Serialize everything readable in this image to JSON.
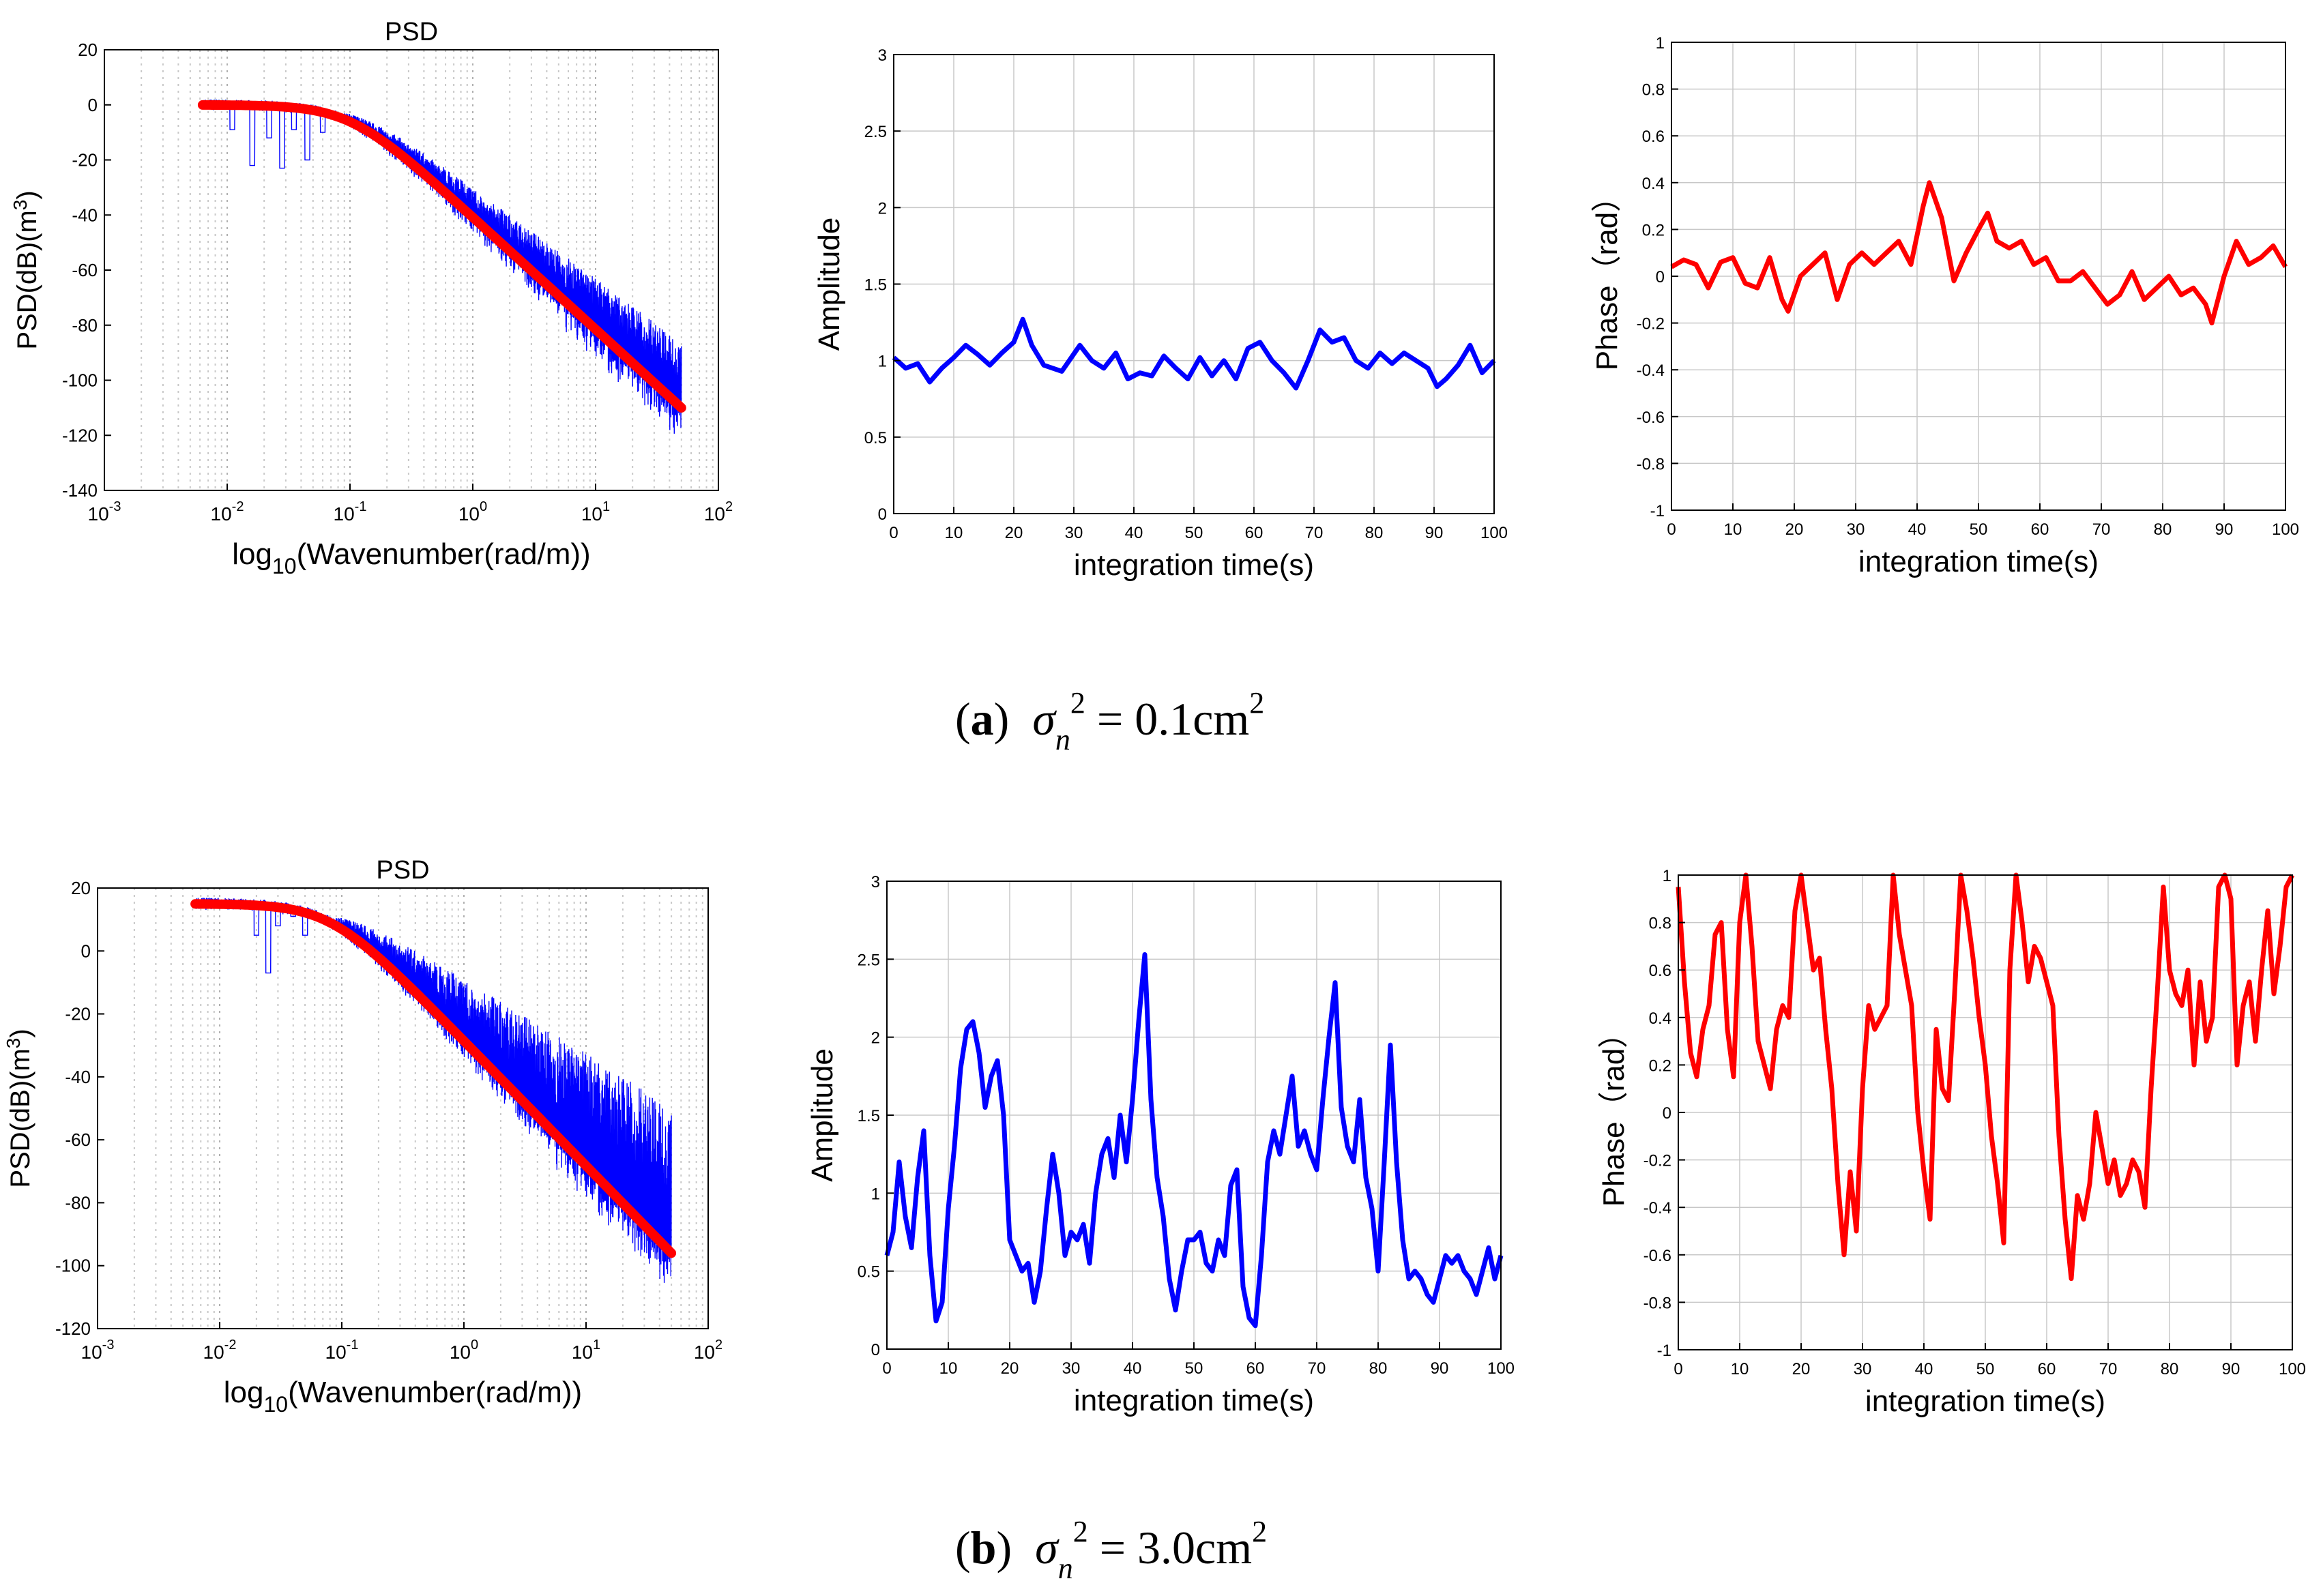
{
  "figure": {
    "captions": [
      {
        "label_open": "(",
        "label": "a",
        "label_close": ")",
        "symbol": "σ",
        "subscript": "n",
        "superscript": "2",
        "equals": " = ",
        "value": "0.1cm",
        "unit_superscript": "2"
      },
      {
        "label_open": "(",
        "label": "b",
        "label_close": ")",
        "symbol": "σ",
        "subscript": "n",
        "superscript": "2",
        "equals": " = ",
        "value": "3.0cm",
        "unit_superscript": "2"
      }
    ]
  },
  "colors": {
    "measured": "#0000ff",
    "fit": "#ff0000",
    "phase": "#ff0000",
    "amplitude": "#0000ff",
    "grid": "#c8c8c8",
    "axis": "#000000"
  },
  "chart_data": [
    {
      "id": "psd_a",
      "type": "line",
      "title": "PSD",
      "xscale": "log",
      "xlim": [
        0.001,
        100
      ],
      "xticks": [
        {
          "base": "10",
          "exp": "-3"
        },
        {
          "base": "10",
          "exp": "-2"
        },
        {
          "base": "10",
          "exp": "-1"
        },
        {
          "base": "10",
          "exp": "0"
        },
        {
          "base": "10",
          "exp": "1"
        },
        {
          "base": "10",
          "exp": "2"
        }
      ],
      "ylim": [
        -140,
        20
      ],
      "yticks": [
        "20",
        "0",
        "-20",
        "-40",
        "-60",
        "-80",
        "-100",
        "-120",
        "-140"
      ],
      "xlabel": {
        "prefix": "log",
        "sub": "10",
        "rest": "(Wavenumber(rad/m))"
      },
      "ylabel": {
        "text": "PSD(dB)(m",
        "sup": "3",
        "end": ")"
      },
      "fit": {
        "k0": 0.0063,
        "k1": 50,
        "plateau_db": 0,
        "kc": 0.1,
        "slope": 2.9,
        "end_db": -110
      },
      "noise_extra_db": 22,
      "dips": [
        [
          0.011,
          -9
        ],
        [
          0.016,
          -22
        ],
        [
          0.022,
          -12
        ],
        [
          0.028,
          -23
        ],
        [
          0.035,
          -9
        ],
        [
          0.045,
          -20
        ],
        [
          0.06,
          -10
        ]
      ]
    },
    {
      "id": "amp_a",
      "type": "line",
      "xlabel": "integration time(s)",
      "ylabel": "Amplitude",
      "xlim": [
        0,
        100
      ],
      "ylim": [
        0,
        3
      ],
      "xticks": [
        "0",
        "10",
        "20",
        "30",
        "40",
        "50",
        "60",
        "70",
        "80",
        "90",
        "100"
      ],
      "yticks": [
        "3",
        "2.5",
        "2",
        "1.5",
        "1",
        "0.5",
        "0"
      ],
      "series": [
        {
          "name": "Amplitude",
          "x": [
            0,
            2,
            4,
            6,
            8,
            10,
            12,
            14,
            16,
            18,
            20,
            21.5,
            23,
            25,
            28,
            31,
            33,
            35,
            37,
            39,
            41,
            43,
            45,
            47,
            49,
            51,
            53,
            55,
            57,
            59,
            61,
            63,
            65,
            67,
            69,
            71,
            73,
            75,
            77,
            79,
            81,
            83,
            85,
            87,
            89,
            90.5,
            92,
            94,
            96,
            98,
            100
          ],
          "y": [
            1.02,
            0.95,
            0.98,
            0.86,
            0.95,
            1.02,
            1.1,
            1.04,
            0.97,
            1.05,
            1.12,
            1.27,
            1.1,
            0.97,
            0.93,
            1.1,
            1.0,
            0.95,
            1.05,
            0.88,
            0.92,
            0.9,
            1.03,
            0.95,
            0.88,
            1.02,
            0.9,
            1.0,
            0.88,
            1.08,
            1.12,
            1.0,
            0.92,
            0.82,
            1.0,
            1.2,
            1.12,
            1.15,
            1.0,
            0.95,
            1.05,
            0.98,
            1.05,
            1.0,
            0.95,
            0.83,
            0.88,
            0.97,
            1.1,
            0.92,
            1.0
          ]
        }
      ]
    },
    {
      "id": "phase_a",
      "type": "line",
      "xlabel": "integration time(s)",
      "ylabel": "Phase（rad）",
      "xlim": [
        0,
        100
      ],
      "ylim": [
        -1,
        1
      ],
      "xticks": [
        "0",
        "10",
        "20",
        "30",
        "40",
        "50",
        "60",
        "70",
        "80",
        "90",
        "100"
      ],
      "yticks": [
        "1",
        "0.8",
        "0.6",
        "0.4",
        "0.2",
        "0",
        "-0.2",
        "-0.4",
        "-0.6",
        "-0.8",
        "-1"
      ],
      "series": [
        {
          "name": "Phase",
          "x": [
            0,
            2,
            4,
            6,
            8,
            10,
            12,
            14,
            16,
            18,
            19,
            21,
            23,
            25,
            27,
            29,
            31,
            33,
            35,
            37,
            39,
            41,
            42,
            44,
            46,
            48,
            50,
            51.5,
            53,
            55,
            57,
            59,
            61,
            63,
            65,
            67,
            69,
            71,
            73,
            75,
            77,
            79,
            81,
            83,
            85,
            87,
            88,
            90,
            92,
            94,
            96,
            98,
            100
          ],
          "y": [
            0.04,
            0.07,
            0.05,
            -0.05,
            0.06,
            0.08,
            -0.03,
            -0.05,
            0.08,
            -0.1,
            -0.15,
            0.0,
            0.05,
            0.1,
            -0.1,
            0.05,
            0.1,
            0.05,
            0.1,
            0.15,
            0.05,
            0.3,
            0.4,
            0.25,
            -0.02,
            0.1,
            0.2,
            0.27,
            0.15,
            0.12,
            0.15,
            0.05,
            0.08,
            -0.02,
            -0.02,
            0.02,
            -0.05,
            -0.12,
            -0.08,
            0.02,
            -0.1,
            -0.05,
            0.0,
            -0.08,
            -0.05,
            -0.12,
            -0.2,
            0.0,
            0.15,
            0.05,
            0.08,
            0.13,
            0.04
          ]
        }
      ]
    },
    {
      "id": "psd_b",
      "type": "line",
      "title": "PSD",
      "xscale": "log",
      "xlim": [
        0.001,
        100
      ],
      "xticks": [
        {
          "base": "10",
          "exp": "-3"
        },
        {
          "base": "10",
          "exp": "-2"
        },
        {
          "base": "10",
          "exp": "-1"
        },
        {
          "base": "10",
          "exp": "0"
        },
        {
          "base": "10",
          "exp": "1"
        },
        {
          "base": "10",
          "exp": "2"
        }
      ],
      "ylim": [
        -120,
        20
      ],
      "yticks": [
        "20",
        "0",
        "-20",
        "-40",
        "-60",
        "-80",
        "-100",
        "-120"
      ],
      "xlabel": {
        "prefix": "log",
        "sub": "10",
        "rest": "(Wavenumber(rad/m))"
      },
      "ylabel": {
        "text": "PSD(dB)(m",
        "sup": "3",
        "end": ")"
      },
      "fit": {
        "k0": 0.0063,
        "k1": 50,
        "plateau_db": 15,
        "kc": 0.08,
        "slope": 2.9,
        "end_db": -96
      },
      "noise_extra_db": 45,
      "dips": [
        [
          0.02,
          5
        ],
        [
          0.025,
          -7
        ],
        [
          0.03,
          8
        ],
        [
          0.04,
          11
        ],
        [
          0.05,
          5
        ]
      ]
    },
    {
      "id": "amp_b",
      "type": "line",
      "xlabel": "integration time(s)",
      "ylabel": "Amplitude",
      "xlim": [
        0,
        100
      ],
      "ylim": [
        0,
        3
      ],
      "xticks": [
        "0",
        "10",
        "20",
        "30",
        "40",
        "50",
        "60",
        "70",
        "80",
        "90",
        "100"
      ],
      "yticks": [
        "3",
        "2.5",
        "2",
        "1.5",
        "1",
        "0.5",
        "0"
      ],
      "series": [
        {
          "name": "Amplitude",
          "x": [
            0,
            1,
            2,
            3,
            4,
            5,
            6,
            7,
            8,
            9,
            10,
            11,
            12,
            13,
            14,
            15,
            16,
            17,
            18,
            19,
            20,
            21,
            22,
            23,
            24,
            25,
            26,
            27,
            28,
            29,
            30,
            31,
            32,
            33,
            34,
            35,
            36,
            37,
            38,
            39,
            40,
            41,
            42,
            43,
            44,
            45,
            46,
            47,
            48,
            49,
            50,
            51,
            52,
            53,
            54,
            55,
            56,
            57,
            58,
            59,
            60,
            61,
            62,
            63,
            64,
            65,
            66,
            67,
            68,
            69,
            70,
            71,
            72,
            73,
            74,
            75,
            76,
            77,
            78,
            79,
            80,
            81,
            82,
            83,
            84,
            85,
            86,
            87,
            88,
            89,
            90,
            91,
            92,
            93,
            94,
            95,
            96,
            97,
            98,
            99,
            100
          ],
          "y": [
            0.6,
            0.75,
            1.2,
            0.85,
            0.65,
            1.1,
            1.4,
            0.6,
            0.18,
            0.3,
            0.9,
            1.3,
            1.8,
            2.05,
            2.1,
            1.9,
            1.55,
            1.75,
            1.85,
            1.5,
            0.7,
            0.6,
            0.5,
            0.55,
            0.3,
            0.5,
            0.9,
            1.25,
            1.0,
            0.6,
            0.75,
            0.7,
            0.8,
            0.55,
            1.0,
            1.25,
            1.35,
            1.1,
            1.5,
            1.2,
            1.6,
            2.1,
            2.53,
            1.6,
            1.1,
            0.85,
            0.45,
            0.25,
            0.5,
            0.7,
            0.7,
            0.75,
            0.55,
            0.5,
            0.7,
            0.6,
            1.05,
            1.15,
            0.4,
            0.2,
            0.15,
            0.6,
            1.2,
            1.4,
            1.25,
            1.5,
            1.75,
            1.3,
            1.4,
            1.25,
            1.15,
            1.6,
            2.0,
            2.35,
            1.55,
            1.3,
            1.2,
            1.6,
            1.1,
            0.9,
            0.5,
            1.2,
            1.95,
            1.2,
            0.7,
            0.45,
            0.5,
            0.45,
            0.35,
            0.3,
            0.45,
            0.6,
            0.55,
            0.6,
            0.5,
            0.45,
            0.35,
            0.5,
            0.65,
            0.45,
            0.6
          ]
        }
      ]
    },
    {
      "id": "phase_b",
      "type": "line",
      "xlabel": "integration time(s)",
      "ylabel": "Phase（rad）",
      "xlim": [
        0,
        100
      ],
      "ylim": [
        -1,
        1
      ],
      "xticks": [
        "0",
        "10",
        "20",
        "30",
        "40",
        "50",
        "60",
        "70",
        "80",
        "90",
        "100"
      ],
      "yticks": [
        "1",
        "0.8",
        "0.6",
        "0.4",
        "0.2",
        "0",
        "-0.2",
        "-0.4",
        "-0.6",
        "-0.8",
        "-1"
      ],
      "series": [
        {
          "name": "Phase",
          "x": [
            0,
            1,
            2,
            3,
            4,
            5,
            6,
            7,
            8,
            9,
            10,
            11,
            12,
            13,
            14,
            15,
            16,
            17,
            18,
            19,
            20,
            21,
            22,
            23,
            24,
            25,
            26,
            27,
            28,
            29,
            30,
            31,
            32,
            33,
            34,
            35,
            36,
            37,
            38,
            39,
            40,
            41,
            42,
            43,
            44,
            45,
            46,
            47,
            48,
            49,
            50,
            51,
            52,
            53,
            54,
            55,
            56,
            57,
            58,
            59,
            60,
            61,
            62,
            63,
            64,
            65,
            66,
            67,
            68,
            69,
            70,
            71,
            72,
            73,
            74,
            75,
            76,
            77,
            78,
            79,
            80,
            81,
            82,
            83,
            84,
            85,
            86,
            87,
            88,
            89,
            90,
            91,
            92,
            93,
            94,
            95,
            96,
            97,
            98,
            99,
            100
          ],
          "y": [
            0.95,
            0.55,
            0.25,
            0.15,
            0.35,
            0.45,
            0.75,
            0.8,
            0.35,
            0.15,
            0.8,
            1.0,
            0.7,
            0.3,
            0.2,
            0.1,
            0.35,
            0.45,
            0.4,
            0.85,
            1.0,
            0.8,
            0.6,
            0.65,
            0.35,
            0.1,
            -0.3,
            -0.6,
            -0.25,
            -0.5,
            0.1,
            0.45,
            0.35,
            0.4,
            0.45,
            1.0,
            0.75,
            0.6,
            0.45,
            0.0,
            -0.25,
            -0.45,
            0.35,
            0.1,
            0.05,
            0.5,
            1.0,
            0.85,
            0.65,
            0.4,
            0.2,
            -0.1,
            -0.3,
            -0.55,
            0.6,
            1.0,
            0.8,
            0.55,
            0.7,
            0.65,
            0.55,
            0.45,
            -0.1,
            -0.45,
            -0.7,
            -0.35,
            -0.45,
            -0.3,
            0.0,
            -0.15,
            -0.3,
            -0.2,
            -0.35,
            -0.3,
            -0.2,
            -0.25,
            -0.4,
            0.1,
            0.5,
            0.95,
            0.6,
            0.5,
            0.45,
            0.6,
            0.2,
            0.55,
            0.3,
            0.4,
            0.95,
            1.0,
            0.9,
            0.2,
            0.45,
            0.55,
            0.3,
            0.6,
            0.85,
            0.5,
            0.7,
            0.95,
            1.0
          ]
        }
      ]
    }
  ]
}
